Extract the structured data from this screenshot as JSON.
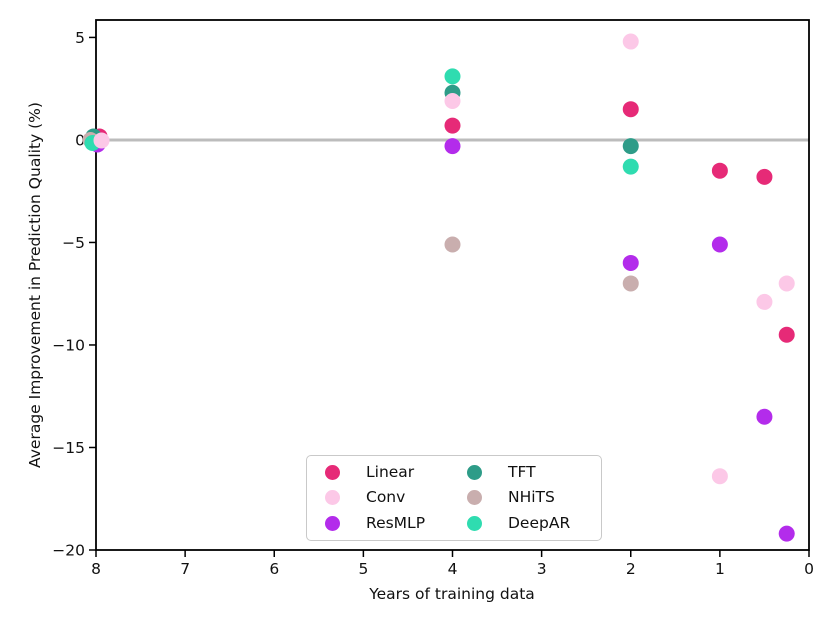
{
  "chart_data": {
    "type": "scatter",
    "title": "",
    "xlabel": "Years of training data",
    "ylabel": "Average Improvement in Prediction Quality (%)",
    "xlim": [
      8,
      0
    ],
    "ylim": [
      -20,
      5.85
    ],
    "x_axis_reversed": true,
    "x_ticks": [
      8,
      7,
      6,
      5,
      4,
      3,
      2,
      1,
      0
    ],
    "y_ticks": [
      5,
      0,
      -5,
      -10,
      -15,
      -20
    ],
    "grid": false,
    "zero_line": {
      "y": 0,
      "color": "#bcbcbc",
      "width": 3
    },
    "marker_radius_px": 8,
    "spine_color": "#000000",
    "series": [
      {
        "name": "Linear",
        "color": "#e62a77",
        "points": [
          [
            8,
            0.0
          ],
          [
            4,
            0.7
          ],
          [
            2,
            1.5
          ],
          [
            1,
            -1.5
          ],
          [
            0.5,
            -1.8
          ],
          [
            0.25,
            -9.5
          ]
        ]
      },
      {
        "name": "Conv",
        "color": "#fcc8e7",
        "points": [
          [
            8,
            0.0
          ],
          [
            4,
            1.9
          ],
          [
            2,
            4.8
          ],
          [
            1,
            -16.4
          ],
          [
            0.5,
            -7.9
          ],
          [
            0.25,
            -7.0
          ]
        ]
      },
      {
        "name": "ResMLP",
        "color": "#b32ceb",
        "points": [
          [
            8,
            0.0
          ],
          [
            4,
            -0.3
          ],
          [
            2,
            -6.0
          ],
          [
            1,
            -5.1
          ],
          [
            0.5,
            -13.5
          ],
          [
            0.25,
            -19.2
          ]
        ]
      },
      {
        "name": "TFT",
        "color": "#2e9c88",
        "points": [
          [
            8,
            0.0
          ],
          [
            4,
            2.3
          ],
          [
            2,
            -0.3
          ]
        ]
      },
      {
        "name": "NHiTS",
        "color": "#c9aeae",
        "points": [
          [
            8,
            0.0
          ],
          [
            4,
            -5.1
          ],
          [
            2,
            -7.0
          ]
        ]
      },
      {
        "name": "DeepAR",
        "color": "#2fdcb0",
        "points": [
          [
            8,
            0.0
          ],
          [
            4,
            3.1
          ],
          [
            2,
            -1.3
          ]
        ]
      }
    ],
    "draw_order": [
      "Linear",
      "ResMLP",
      "TFT",
      "NHiTS",
      "DeepAR",
      "Conv"
    ],
    "legend": {
      "position": "lower-center",
      "columns": [
        [
          "Linear",
          "Conv",
          "ResMLP"
        ],
        [
          "TFT",
          "NHiTS",
          "DeepAR"
        ]
      ]
    }
  }
}
